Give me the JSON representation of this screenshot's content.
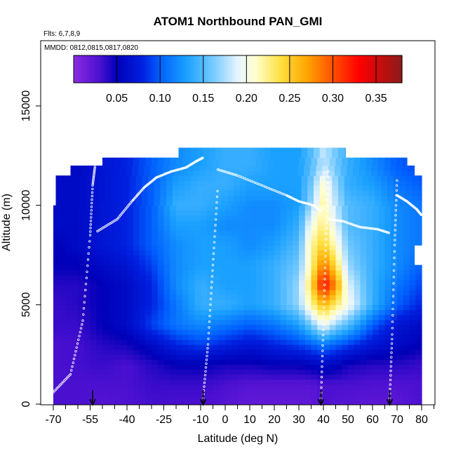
{
  "chart_data": {
    "type": "heatmap",
    "title": "ATOM1 Northbound PAN_GMI",
    "flights_note": "Flts: 6,7,8,9",
    "dates_note": "MMDD: 0812,0815,0817,0820",
    "xlabel": "Latitude (deg N)",
    "ylabel": "Altitude (m)",
    "xlim": [
      -70,
      80
    ],
    "ylim": [
      0,
      17500
    ],
    "x_ticks": [
      -70,
      -55,
      -40,
      -25,
      -10,
      0,
      10,
      20,
      30,
      40,
      50,
      60,
      70,
      80
    ],
    "x_tick_labels": [
      "-70",
      "-55",
      "-40",
      "-25",
      "-10",
      "0",
      "10",
      "20",
      "30",
      "40",
      "50",
      "60",
      "70",
      "80"
    ],
    "y_ticks": [
      0,
      5000,
      10000,
      15000
    ],
    "y_tick_labels": [
      "0",
      "5000",
      "10000",
      "15000"
    ],
    "colorbar": {
      "range": [
        0.0,
        0.38
      ],
      "tick_values": [
        0.05,
        0.1,
        0.15,
        0.2,
        0.25,
        0.3,
        0.35
      ],
      "tick_labels": [
        "0.05",
        "0.10",
        "0.15",
        "0.20",
        "0.25",
        "0.30",
        "0.35"
      ],
      "stops": [
        {
          "v": 0.0,
          "c": "#8a2be2"
        },
        {
          "v": 0.03,
          "c": "#4b10d0"
        },
        {
          "v": 0.05,
          "c": "#0000b8"
        },
        {
          "v": 0.08,
          "c": "#0020e0"
        },
        {
          "v": 0.1,
          "c": "#0060ff"
        },
        {
          "v": 0.13,
          "c": "#1aa0ff"
        },
        {
          "v": 0.16,
          "c": "#70c8ff"
        },
        {
          "v": 0.19,
          "c": "#e8f4ff"
        },
        {
          "v": 0.21,
          "c": "#ffffd0"
        },
        {
          "v": 0.24,
          "c": "#ffe040"
        },
        {
          "v": 0.27,
          "c": "#ffa500"
        },
        {
          "v": 0.3,
          "c": "#ff5000"
        },
        {
          "v": 0.33,
          "c": "#ff0000"
        },
        {
          "v": 0.38,
          "c": "#8b1a1a"
        }
      ]
    },
    "profile_arrows_lat": [
      -54,
      -9,
      39,
      67
    ],
    "alt_nodes": [
      0,
      1000,
      2000,
      3000,
      4000,
      5000,
      6000,
      7000,
      8000,
      9000,
      10000,
      11000,
      12000
    ],
    "lat_nodes": [
      -70,
      -60,
      -50,
      -40,
      -30,
      -20,
      -10,
      0,
      10,
      20,
      30,
      35,
      40,
      45,
      50,
      60,
      70,
      80
    ],
    "grid_values": [
      [
        0.03,
        0.03,
        0.025,
        0.028,
        0.032,
        0.03,
        0.03,
        0.025,
        0.02,
        0.02,
        0.02,
        0.02,
        0.03,
        0.025,
        0.025,
        0.022,
        0.022,
        0.03
      ],
      [
        0.03,
        0.03,
        0.03,
        0.03,
        0.035,
        0.035,
        0.035,
        0.03,
        0.025,
        0.025,
        0.025,
        0.025,
        0.03,
        0.03,
        0.03,
        0.028,
        0.028,
        0.03
      ],
      [
        0.03,
        0.032,
        0.035,
        0.03,
        0.04,
        0.05,
        0.05,
        0.045,
        0.045,
        0.05,
        0.05,
        0.055,
        0.06,
        0.055,
        0.045,
        0.04,
        0.04,
        0.035
      ],
      [
        0.03,
        0.032,
        0.04,
        0.045,
        0.06,
        0.08,
        0.09,
        0.08,
        0.07,
        0.08,
        0.09,
        0.1,
        0.11,
        0.1,
        0.09,
        0.07,
        0.06,
        0.05
      ],
      [
        0.035,
        0.035,
        0.05,
        0.06,
        0.09,
        0.11,
        0.12,
        0.11,
        0.1,
        0.11,
        0.13,
        0.16,
        0.2,
        0.17,
        0.15,
        0.1,
        0.07,
        0.06
      ],
      [
        0.035,
        0.04,
        0.05,
        0.06,
        0.08,
        0.11,
        0.14,
        0.14,
        0.13,
        0.14,
        0.17,
        0.22,
        0.26,
        0.23,
        0.2,
        0.14,
        0.1,
        0.08
      ],
      [
        0.04,
        0.04,
        0.05,
        0.06,
        0.08,
        0.12,
        0.14,
        0.13,
        0.13,
        0.14,
        0.17,
        0.24,
        0.33,
        0.28,
        0.19,
        0.14,
        0.11,
        0.09
      ],
      [
        0.05,
        0.05,
        0.06,
        0.07,
        0.09,
        0.12,
        0.13,
        0.13,
        0.13,
        0.14,
        0.16,
        0.22,
        0.29,
        0.24,
        0.17,
        0.14,
        0.12,
        0.1
      ],
      [
        0.05,
        0.06,
        0.07,
        0.08,
        0.1,
        0.12,
        0.13,
        0.13,
        0.12,
        0.13,
        0.15,
        0.22,
        0.25,
        0.21,
        0.16,
        0.14,
        0.12,
        0.11
      ],
      [
        0.06,
        0.06,
        0.07,
        0.08,
        0.1,
        0.13,
        0.13,
        0.12,
        0.12,
        0.12,
        0.14,
        0.2,
        0.23,
        0.19,
        0.15,
        0.14,
        0.12,
        0.11
      ],
      [
        0.06,
        0.06,
        0.07,
        0.08,
        0.1,
        0.14,
        0.14,
        0.13,
        0.12,
        0.12,
        0.13,
        0.17,
        0.22,
        0.18,
        0.15,
        0.14,
        0.12,
        0.11
      ],
      [
        0.06,
        0.06,
        0.07,
        0.08,
        0.1,
        0.13,
        0.14,
        0.14,
        0.13,
        0.13,
        0.13,
        0.16,
        0.21,
        0.17,
        0.14,
        0.13,
        0.11,
        0.1
      ],
      [
        0.06,
        0.06,
        0.07,
        0.08,
        0.1,
        0.12,
        0.13,
        0.14,
        0.14,
        0.13,
        0.13,
        0.15,
        0.18,
        0.16,
        0.14,
        0.12,
        0.1,
        0.09
      ]
    ],
    "coverage": [
      {
        "alt": [
          0,
          4000
        ],
        "lat": [
          -70,
          80
        ]
      },
      {
        "alt": [
          4000,
          7000
        ],
        "lat": [
          -70,
          80
        ]
      },
      {
        "alt": [
          7000,
          8000
        ],
        "lat": [
          -70,
          77
        ]
      },
      {
        "alt": [
          8000,
          10000
        ],
        "lat": [
          -70,
          80
        ]
      },
      {
        "alt": [
          10000,
          11500
        ],
        "lat": [
          -69,
          80
        ]
      },
      {
        "alt": [
          11500,
          12000
        ],
        "lat": [
          -63,
          77
        ]
      },
      {
        "alt": [
          12000,
          12400
        ],
        "lat": [
          -50,
          74
        ]
      },
      {
        "alt": [
          12400,
          12900
        ],
        "lat": [
          -19,
          49
        ]
      }
    ],
    "obs_tracks": [
      {
        "lat": [
          -70,
          -63,
          -58,
          -55,
          -54,
          -53
        ],
        "alt": [
          600,
          1500,
          4200,
          8500,
          11000,
          12000
        ]
      },
      {
        "lat": [
          -52,
          -44,
          -38,
          -33,
          -28,
          -22,
          -16,
          -12,
          -9
        ],
        "alt": [
          8700,
          9300,
          10200,
          10900,
          11400,
          11700,
          11900,
          12200,
          12400
        ]
      },
      {
        "lat": [
          -9,
          -7,
          -5,
          -3
        ],
        "alt": [
          300,
          3000,
          7000,
          11000
        ]
      },
      {
        "lat": [
          -3,
          5,
          15,
          25,
          30,
          36,
          39
        ],
        "alt": [
          11800,
          11500,
          11000,
          10500,
          10200,
          10000,
          9700
        ]
      },
      {
        "lat": [
          39,
          40,
          41,
          42
        ],
        "alt": [
          300,
          4000,
          8000,
          12000
        ]
      },
      {
        "lat": [
          42,
          48,
          55,
          62,
          67
        ],
        "alt": [
          9300,
          9200,
          8900,
          8800,
          8600
        ]
      },
      {
        "lat": [
          67,
          68,
          69,
          70
        ],
        "alt": [
          300,
          3500,
          8000,
          11500
        ]
      },
      {
        "lat": [
          70,
          74,
          78,
          80
        ],
        "alt": [
          10500,
          10200,
          9800,
          9500
        ]
      }
    ]
  }
}
